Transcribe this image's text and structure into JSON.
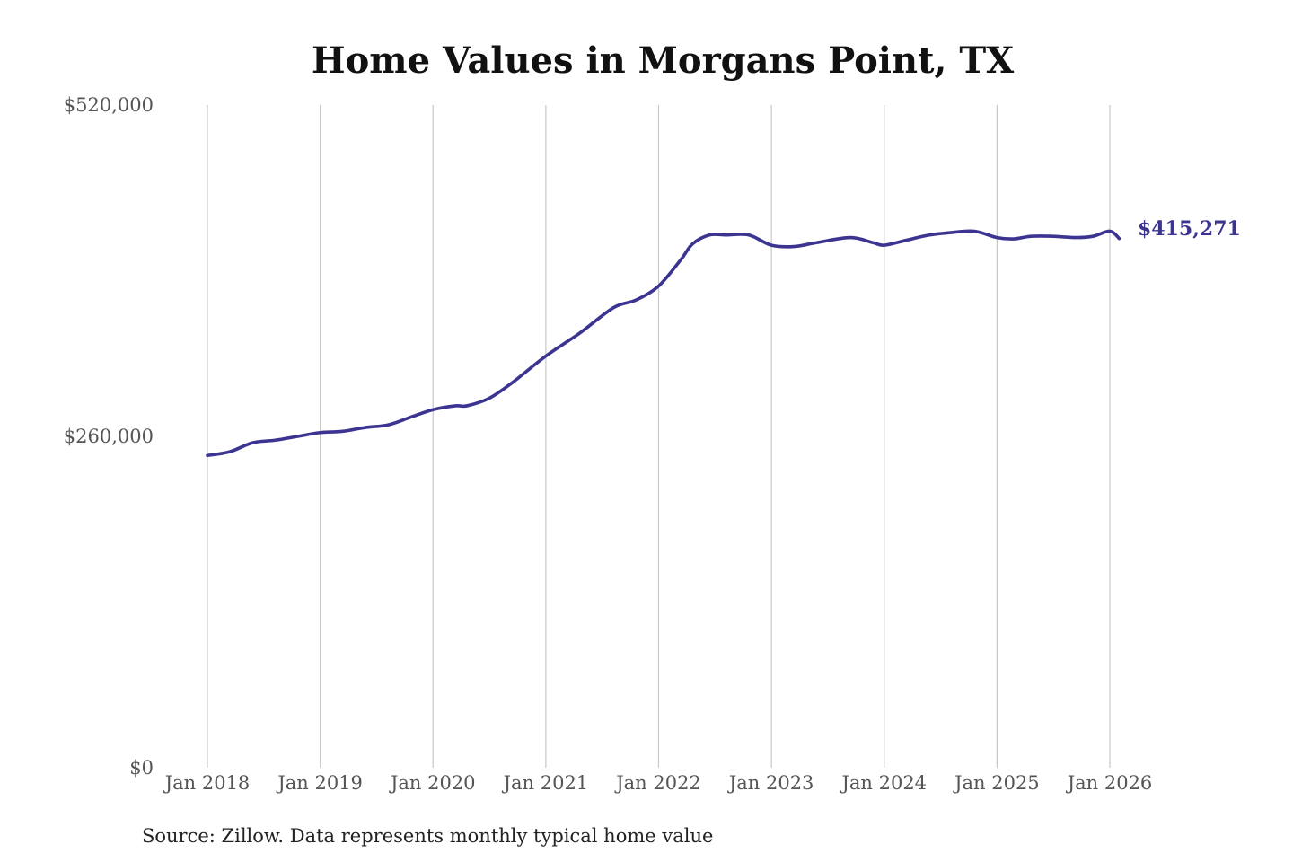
{
  "colors": {
    "series": "#3b3491",
    "gridline": "#c8c8c8",
    "title": "#111111",
    "tick_text": "#555555"
  },
  "chart_data": {
    "type": "line",
    "title": "Home Values in Morgans Point, TX",
    "xlabel": "",
    "ylabel": "",
    "ylim": [
      0,
      520000
    ],
    "y_ticks": [
      0,
      260000,
      520000
    ],
    "y_tick_labels": [
      "$0",
      "$260,000",
      "$520,000"
    ],
    "x_range": [
      2018.0,
      2026.0833
    ],
    "x_ticks": [
      2018,
      2019,
      2020,
      2021,
      2022,
      2023,
      2024,
      2025,
      2026
    ],
    "x_tick_labels": [
      "Jan 2018",
      "Jan 2019",
      "Jan 2020",
      "Jan 2021",
      "Jan 2022",
      "Jan 2023",
      "Jan 2024",
      "Jan 2025",
      "Jan 2026"
    ],
    "grid": "vertical",
    "legend": "none",
    "end_label": "$415,271",
    "source_note": "Source: Zillow. Data represents monthly typical home value",
    "series": [
      {
        "x": [
          2018.0,
          2018.2,
          2018.4,
          2018.6,
          2018.8,
          2019.0,
          2019.2,
          2019.4,
          2019.6,
          2019.8,
          2020.0,
          2020.2,
          2020.3,
          2020.5,
          2020.7,
          2021.0,
          2021.3,
          2021.6,
          2021.8,
          2022.0,
          2022.2,
          2022.3,
          2022.45,
          2022.6,
          2022.8,
          2023.0,
          2023.2,
          2023.4,
          2023.7,
          2023.9,
          2024.0,
          2024.2,
          2024.4,
          2024.6,
          2024.8,
          2025.0,
          2025.15,
          2025.3,
          2025.5,
          2025.7,
          2025.85,
          2026.0,
          2026.0833
        ],
        "y": [
          245000,
          248000,
          255000,
          257000,
          260000,
          263000,
          264000,
          267000,
          269000,
          275000,
          281000,
          284000,
          284000,
          290000,
          302000,
          323000,
          341000,
          361000,
          367000,
          378000,
          399000,
          411000,
          418000,
          418000,
          418000,
          410000,
          409000,
          412000,
          416000,
          412000,
          410000,
          414000,
          418000,
          420000,
          421000,
          416000,
          415000,
          417000,
          417000,
          416000,
          417000,
          421000,
          415271
        ]
      }
    ]
  }
}
